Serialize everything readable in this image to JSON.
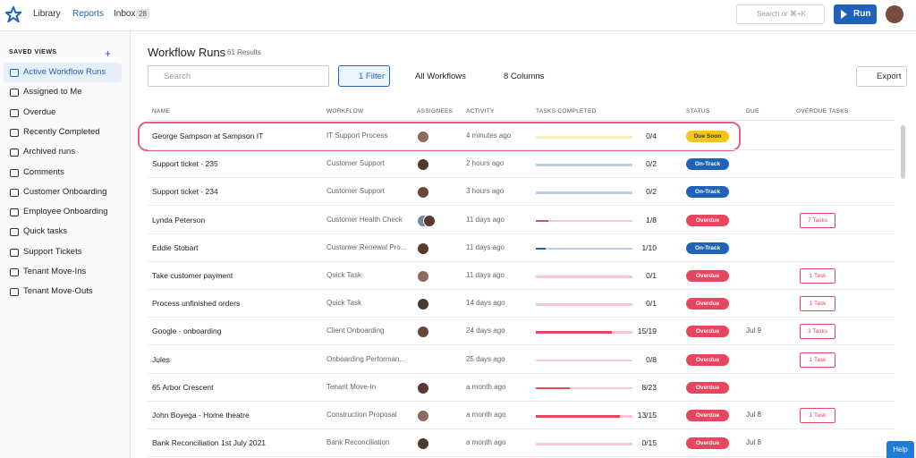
{
  "nav": {
    "links": [
      "Library",
      "Reports",
      "Inbox"
    ],
    "inbox_count": 28,
    "search": "Search or ⌘+K",
    "run": "Run"
  },
  "sidebar": {
    "heading": "SAVED VIEWS",
    "items": [
      "Active Workflow Runs",
      "Assigned to Me",
      "Overdue",
      "Recently Completed",
      "Archived runs",
      "Comments",
      "Customer Onboarding",
      "Employee Onboarding",
      "Quick tasks",
      "Support Tickets",
      "Tenant Move-Ins",
      "Tenant Move-Outs"
    ]
  },
  "main": {
    "title": "Workflow Runs",
    "results": "61 Results",
    "search": "Search",
    "filter": "1 Filter",
    "workflows": "All Workflows",
    "columns_button": "8 Columns",
    "export": "Export"
  },
  "table": {
    "columns": [
      "NAME",
      "WORKFLOW",
      "ASSIGNEES",
      "ACTIVITY",
      "TASKS COMPLETED",
      "STATUS",
      "DUE",
      "OVERDUE TASKS"
    ],
    "rows": [
      {
        "name": "George Sampson at Sampson IT",
        "workflow": "IT Support Process",
        "activity": "4 minutes ago",
        "tasks": "0/4",
        "status": "Due Soon",
        "color": "#f5c518",
        "text_color": "#333"
      },
      {
        "name": "Support ticket - 235",
        "workflow": "Customer Support",
        "activity": "2 hours ago",
        "tasks": "0/2",
        "status": "On-Track",
        "color": "#1e63b8",
        "text_color": "#fff"
      },
      {
        "name": "Support ticket - 234",
        "workflow": "Customer Support",
        "activity": "3 hours ago",
        "tasks": "0/2",
        "status": "On-Track",
        "color": "#1e63b8",
        "text_color": "#fff"
      },
      {
        "name": "Lynda Peterson",
        "workflow": "Customer Health Check",
        "activity": "11 days ago",
        "tasks": "1/8",
        "status": "Overdue",
        "color": "#e8455f",
        "text_color": "#fff",
        "overdue": "7 Tasks"
      },
      {
        "name": "Eddie Stobart",
        "workflow": "Customer Renewal Pro...",
        "activity": "11 days ago",
        "tasks": "1/10",
        "status": "On-Track",
        "color": "#1e63b8",
        "text_color": "#fff"
      },
      {
        "name": "Take customer payment",
        "workflow": "Quick Task",
        "activity": "11 days ago",
        "tasks": "0/1",
        "status": "Overdue",
        "color": "#e8455f",
        "text_color": "#fff",
        "overdue": "1 Task"
      },
      {
        "name": "Process unfinished orders",
        "workflow": "Quick Task",
        "activity": "14 days ago",
        "tasks": "0/1",
        "status": "Overdue",
        "color": "#e8455f",
        "text_color": "#fff",
        "overdue": "1 Task"
      },
      {
        "name": "Google - onboarding",
        "workflow": "Client Onboarding",
        "activity": "24 days ago",
        "tasks": "15/19",
        "status": "Overdue",
        "color": "#e8455f",
        "text_color": "#fff",
        "due": "Jul 9",
        "overdue": "3 Tasks"
      },
      {
        "name": "Jules",
        "workflow": "Onboarding Performan...",
        "activity": "25 days ago",
        "tasks": "0/8",
        "status": "Overdue",
        "color": "#e8455f",
        "text_color": "#fff",
        "overdue": "1 Task"
      },
      {
        "name": "65 Arbor Crescent",
        "workflow": "Tenant Move-In",
        "activity": "a month ago",
        "tasks": "8/23",
        "status": "Overdue",
        "color": "#e8455f",
        "text_color": "#fff"
      },
      {
        "name": "John Boyega - Home theatre",
        "workflow": "Construction Proposal",
        "activity": "a month ago",
        "tasks": "13/15",
        "status": "Overdue",
        "color": "#e8455f",
        "text_color": "#fff",
        "due": "Jul 8",
        "overdue": "1 Task"
      },
      {
        "name": "Bank Reconciliation 1st July 2021",
        "workflow": "Bank Reconciliation",
        "activity": "a month ago",
        "tasks": "0/15",
        "status": "Overdue",
        "color": "#e8455f",
        "text_color": "#fff",
        "due": "Jul 8"
      }
    ]
  },
  "help": "Help"
}
